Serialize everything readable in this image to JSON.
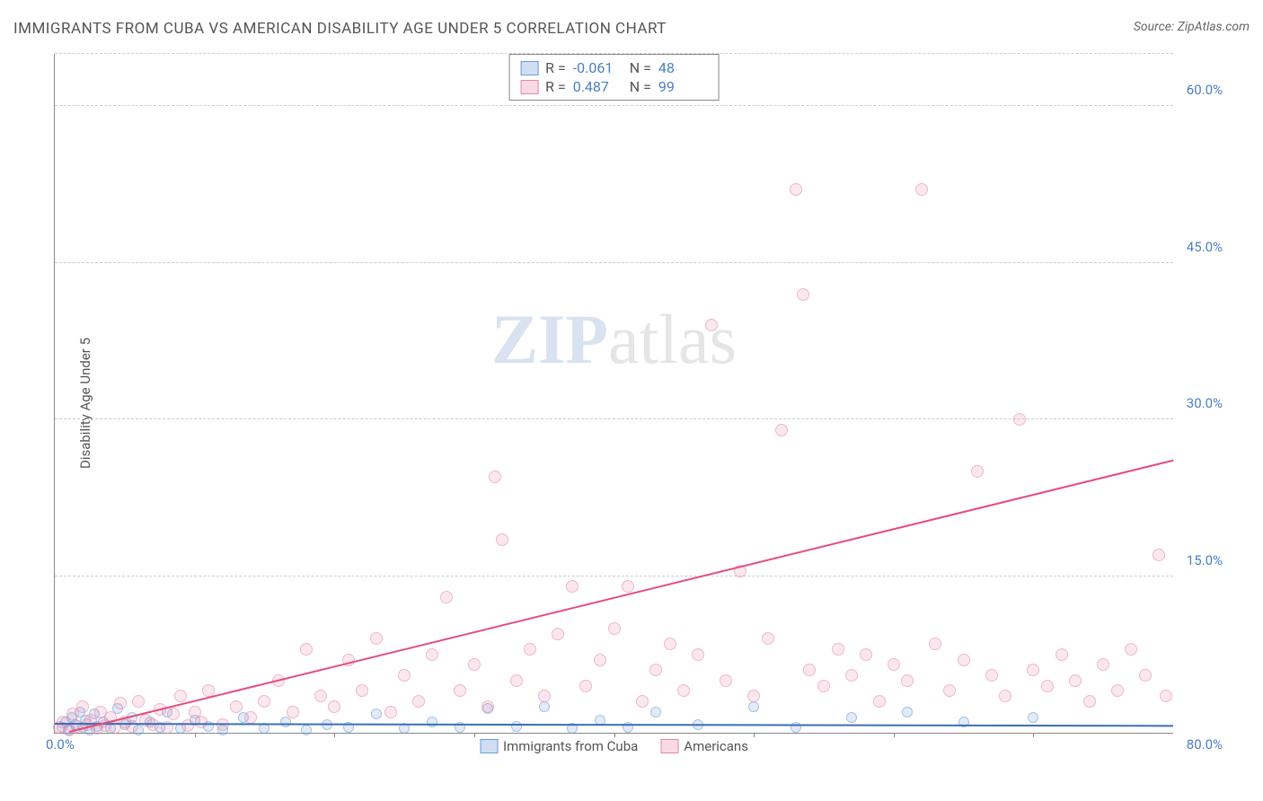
{
  "title": "IMMIGRANTS FROM CUBA VS AMERICAN DISABILITY AGE UNDER 5 CORRELATION CHART",
  "source_label": "Source: ",
  "source_name": "ZipAtlas.com",
  "watermark_zip": "ZIP",
  "watermark_atlas": "atlas",
  "y_axis_title": "Disability Age Under 5",
  "chart": {
    "type": "scatter",
    "xlim": [
      0,
      80
    ],
    "ylim": [
      0,
      65
    ],
    "x_origin_label": "0.0%",
    "x_max_label": "80.0%",
    "y_ticks": [
      {
        "value": 15,
        "label": "15.0%"
      },
      {
        "value": 30,
        "label": "30.0%"
      },
      {
        "value": 45,
        "label": "45.0%"
      },
      {
        "value": 60,
        "label": "60.0%"
      }
    ],
    "x_tick_positions": [
      10,
      20,
      30,
      40,
      50,
      60,
      70
    ],
    "grid_color": "#cccccc",
    "axis_color": "#888888",
    "background_color": "#ffffff",
    "series": [
      {
        "name": "Immigrants from Cuba",
        "key": "cuba",
        "marker_size": 12,
        "fill": "rgba(120,160,220,0.35)",
        "stroke": "#6b9bd6",
        "r_value": "-0.061",
        "n_value": "48",
        "trend": {
          "x1": 0,
          "y1": 0.8,
          "x2": 80,
          "y2": 0.6,
          "color": "#3b6fb5",
          "width": 2
        },
        "points": [
          [
            0.5,
            0.5
          ],
          [
            0.8,
            1.0
          ],
          [
            1.0,
            0.3
          ],
          [
            1.2,
            1.5
          ],
          [
            1.5,
            0.8
          ],
          [
            1.8,
            2.0
          ],
          [
            2.0,
            0.5
          ],
          [
            2.2,
            1.2
          ],
          [
            2.5,
            0.3
          ],
          [
            2.8,
            1.8
          ],
          [
            3.0,
            0.6
          ],
          [
            3.5,
            1.0
          ],
          [
            4.0,
            0.4
          ],
          [
            4.5,
            2.3
          ],
          [
            5.0,
            0.8
          ],
          [
            5.5,
            1.5
          ],
          [
            6.0,
            0.3
          ],
          [
            6.8,
            1.0
          ],
          [
            7.5,
            0.5
          ],
          [
            8.0,
            2.0
          ],
          [
            9.0,
            0.4
          ],
          [
            10.0,
            1.2
          ],
          [
            11.0,
            0.6
          ],
          [
            12.0,
            0.3
          ],
          [
            13.5,
            1.5
          ],
          [
            15.0,
            0.4
          ],
          [
            16.5,
            1.0
          ],
          [
            18.0,
            0.3
          ],
          [
            19.5,
            0.8
          ],
          [
            21.0,
            0.5
          ],
          [
            23.0,
            1.8
          ],
          [
            25.0,
            0.4
          ],
          [
            27.0,
            1.0
          ],
          [
            29.0,
            0.5
          ],
          [
            31.0,
            2.3
          ],
          [
            33.0,
            0.6
          ],
          [
            35.0,
            2.5
          ],
          [
            37.0,
            0.4
          ],
          [
            39.0,
            1.2
          ],
          [
            41.0,
            0.5
          ],
          [
            43.0,
            2.0
          ],
          [
            46.0,
            0.8
          ],
          [
            50.0,
            2.5
          ],
          [
            53.0,
            0.5
          ],
          [
            57.0,
            1.5
          ],
          [
            61.0,
            2.0
          ],
          [
            65.0,
            1.0
          ],
          [
            70.0,
            1.5
          ]
        ]
      },
      {
        "name": "Americans",
        "key": "americans",
        "marker_size": 14,
        "fill": "rgba(235,130,165,0.3)",
        "stroke": "#e687a8",
        "r_value": "0.487",
        "n_value": "99",
        "trend": {
          "x1": 1,
          "y1": 0,
          "x2": 80,
          "y2": 26,
          "color": "#e54d7a",
          "width": 2
        },
        "points": [
          [
            0.3,
            0.5
          ],
          [
            0.6,
            1.0
          ],
          [
            1.0,
            0.3
          ],
          [
            1.3,
            1.8
          ],
          [
            1.6,
            0.6
          ],
          [
            2.0,
            2.5
          ],
          [
            2.3,
            0.8
          ],
          [
            2.6,
            1.2
          ],
          [
            3.0,
            0.4
          ],
          [
            3.3,
            2.0
          ],
          [
            3.6,
            0.7
          ],
          [
            4.0,
            1.5
          ],
          [
            4.3,
            0.5
          ],
          [
            4.7,
            2.8
          ],
          [
            5.0,
            1.0
          ],
          [
            5.5,
            0.6
          ],
          [
            6.0,
            3.0
          ],
          [
            6.5,
            1.2
          ],
          [
            7.0,
            0.8
          ],
          [
            7.5,
            2.2
          ],
          [
            8.0,
            0.5
          ],
          [
            8.5,
            1.8
          ],
          [
            9.0,
            3.5
          ],
          [
            9.5,
            0.7
          ],
          [
            10.0,
            2.0
          ],
          [
            10.5,
            1.0
          ],
          [
            11.0,
            4.0
          ],
          [
            12.0,
            0.8
          ],
          [
            13.0,
            2.5
          ],
          [
            14.0,
            1.5
          ],
          [
            15.0,
            3.0
          ],
          [
            16.0,
            5.0
          ],
          [
            17.0,
            2.0
          ],
          [
            18.0,
            8.0
          ],
          [
            19.0,
            3.5
          ],
          [
            20.0,
            2.5
          ],
          [
            21.0,
            7.0
          ],
          [
            22.0,
            4.0
          ],
          [
            23.0,
            9.0
          ],
          [
            24.0,
            2.0
          ],
          [
            25.0,
            5.5
          ],
          [
            26.0,
            3.0
          ],
          [
            27.0,
            7.5
          ],
          [
            28.0,
            13.0
          ],
          [
            29.0,
            4.0
          ],
          [
            30.0,
            6.5
          ],
          [
            31.0,
            2.5
          ],
          [
            31.5,
            24.5
          ],
          [
            32.0,
            18.5
          ],
          [
            33.0,
            5.0
          ],
          [
            34.0,
            8.0
          ],
          [
            35.0,
            3.5
          ],
          [
            36.0,
            9.5
          ],
          [
            37.0,
            14.0
          ],
          [
            38.0,
            4.5
          ],
          [
            39.0,
            7.0
          ],
          [
            40.0,
            10.0
          ],
          [
            41.0,
            14.0
          ],
          [
            42.0,
            3.0
          ],
          [
            43.0,
            6.0
          ],
          [
            44.0,
            8.5
          ],
          [
            45.0,
            4.0
          ],
          [
            46.0,
            7.5
          ],
          [
            47.0,
            39.0
          ],
          [
            48.0,
            5.0
          ],
          [
            49.0,
            15.5
          ],
          [
            50.0,
            3.5
          ],
          [
            51.0,
            9.0
          ],
          [
            52.0,
            29.0
          ],
          [
            53.0,
            52.0
          ],
          [
            53.5,
            42.0
          ],
          [
            54.0,
            6.0
          ],
          [
            55.0,
            4.5
          ],
          [
            56.0,
            8.0
          ],
          [
            57.0,
            5.5
          ],
          [
            58.0,
            7.5
          ],
          [
            59.0,
            3.0
          ],
          [
            60.0,
            6.5
          ],
          [
            61.0,
            5.0
          ],
          [
            62.0,
            52.0
          ],
          [
            63.0,
            8.5
          ],
          [
            64.0,
            4.0
          ],
          [
            65.0,
            7.0
          ],
          [
            66.0,
            25.0
          ],
          [
            67.0,
            5.5
          ],
          [
            68.0,
            3.5
          ],
          [
            69.0,
            30.0
          ],
          [
            70.0,
            6.0
          ],
          [
            71.0,
            4.5
          ],
          [
            72.0,
            7.5
          ],
          [
            73.0,
            5.0
          ],
          [
            74.0,
            3.0
          ],
          [
            75.0,
            6.5
          ],
          [
            76.0,
            4.0
          ],
          [
            77.0,
            8.0
          ],
          [
            78.0,
            5.5
          ],
          [
            79.0,
            17.0
          ],
          [
            79.5,
            3.5
          ]
        ]
      }
    ]
  },
  "legend_box": {
    "r_label": "R =",
    "n_label": "N ="
  },
  "bottom_legend": {
    "cuba_label": "Immigrants from Cuba",
    "americans_label": "Americans"
  }
}
